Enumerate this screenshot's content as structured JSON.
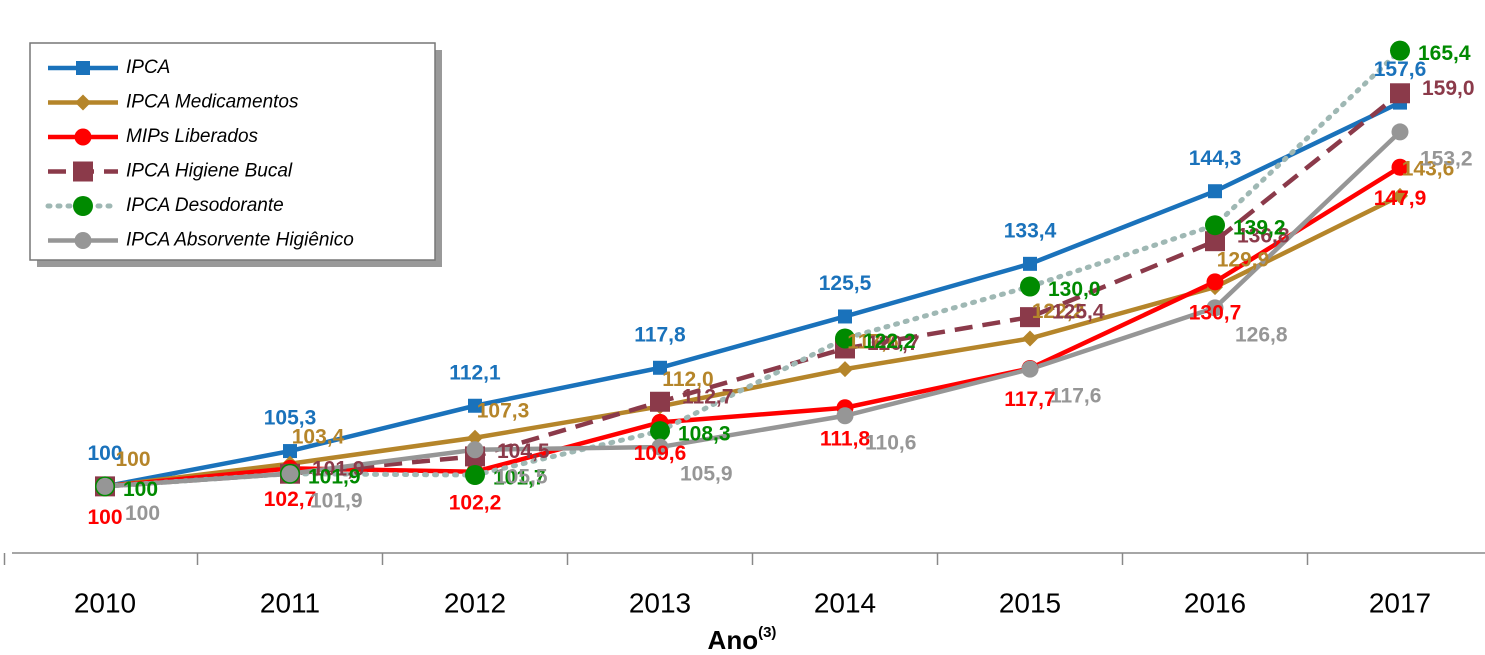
{
  "chart_data": {
    "type": "line",
    "x_label": "Ano",
    "x_label_sup": "(3)",
    "categories": [
      "2010",
      "2011",
      "2012",
      "2013",
      "2014",
      "2015",
      "2016",
      "2017"
    ],
    "ylim": [
      90,
      173
    ],
    "legend": "top-left",
    "series": [
      {
        "name": "IPCA",
        "color": "#1a72bb",
        "marker": "square",
        "line": "solid",
        "values": [
          100,
          105.3,
          112.1,
          117.8,
          125.5,
          133.4,
          144.3,
          157.6
        ],
        "value_labels": [
          "100",
          "105,3",
          "112,1",
          "117,8",
          "125,5",
          "133,4",
          "144,3",
          "157,6"
        ]
      },
      {
        "name": "IPCA Medicamentos",
        "color": "#b5852a",
        "marker": "diamond",
        "line": "solid",
        "values": [
          100,
          103.4,
          107.3,
          112.0,
          117.6,
          122.2,
          129.9,
          143.6
        ],
        "value_labels": [
          "100",
          "103,4",
          "107,3",
          "112,0",
          "117,6",
          "122,2",
          "129,9",
          "143,6"
        ]
      },
      {
        "name": "MIPs Liberados",
        "color": "#ff0000",
        "marker": "circle",
        "line": "solid",
        "values": [
          100,
          102.7,
          102.2,
          109.6,
          111.8,
          117.7,
          130.7,
          147.9
        ],
        "value_labels": [
          "100",
          "102,7",
          "102,2",
          "109,6",
          "111,8",
          "117,7",
          "130,7",
          "147,9"
        ]
      },
      {
        "name": "IPCA Higiene Bucal",
        "color": "#8b3a4a",
        "marker": "square",
        "line": "dashed",
        "values": [
          100,
          101.9,
          104.5,
          112.7,
          120.7,
          125.4,
          136.8,
          159.0
        ],
        "value_labels": [
          null,
          "101,9",
          "104,5",
          "112,7",
          "120,7",
          "125,4",
          "136,8",
          "159,0"
        ]
      },
      {
        "name": "IPCA Desodorante",
        "color": "#008a00",
        "line_color": "#9fb8b4",
        "marker": "circle",
        "line": "dotted",
        "values": [
          100,
          101.9,
          101.7,
          108.3,
          122.2,
          130.0,
          139.2,
          165.4
        ],
        "value_labels": [
          "100",
          "101,9",
          "101,7",
          "108,3",
          "122,2",
          "130,0",
          "139,2",
          "165,4"
        ]
      },
      {
        "name": "IPCA Absorvente Higiênico",
        "color": "#969696",
        "marker": "circle",
        "line": "solid",
        "values": [
          100,
          101.9,
          105.5,
          105.9,
          110.6,
          117.6,
          126.8,
          153.2
        ],
        "value_labels": [
          "100",
          "101,9",
          "105,5",
          "105,9",
          "110,6",
          "117,6",
          "126,8",
          "153,2"
        ]
      }
    ]
  }
}
